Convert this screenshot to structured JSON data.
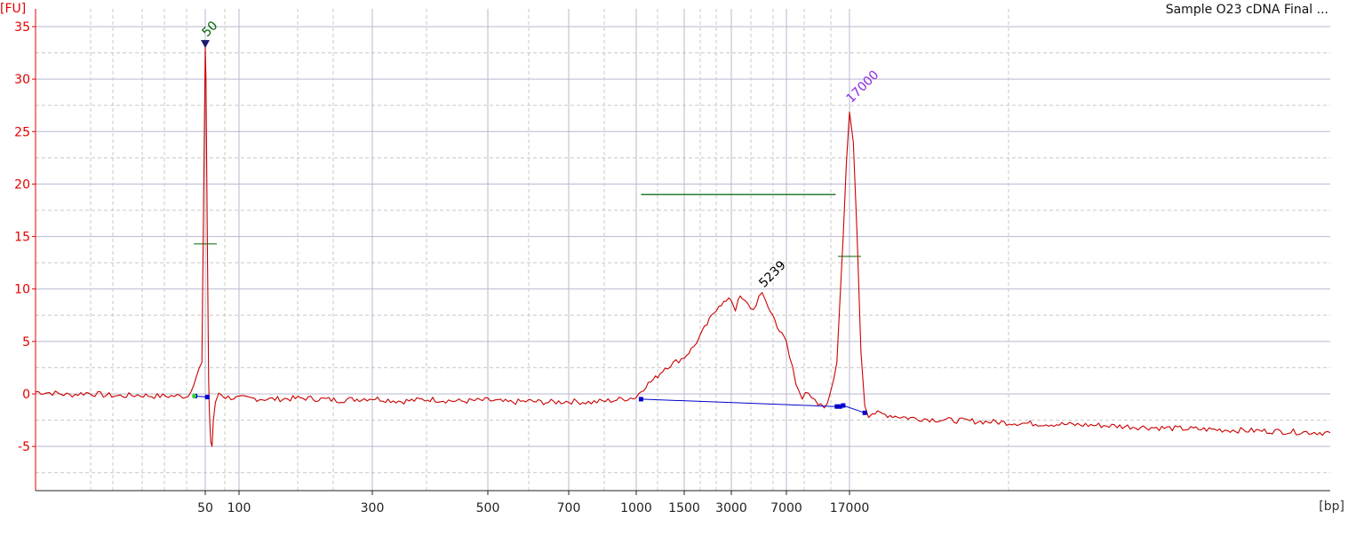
{
  "window": {
    "title": "Sample O23 cDNA Final ..."
  },
  "chart_data": {
    "type": "line",
    "title": "Sample O23 cDNA Final ...",
    "ylabel": "[FU]",
    "xlabel": "[bp]",
    "ylim": [
      -9,
      36
    ],
    "y_ticks": [
      -5,
      0,
      5,
      10,
      15,
      20,
      25,
      30,
      35
    ],
    "x_ticks": [
      "50",
      "100",
      "300",
      "500",
      "700",
      "1000",
      "1500",
      "3000",
      "7000",
      "17000"
    ],
    "grid": true,
    "colors": {
      "trace": "#cc0000",
      "baseline": "#0000cc",
      "smear_bar": "#006400",
      "marker_low": "#006400",
      "marker_high": "#8a2be2",
      "axis_text": "#e00000"
    },
    "series": [
      {
        "x": [
          0,
          5,
          10,
          15,
          20,
          25,
          30,
          35,
          40,
          45,
          49,
          50,
          51,
          53,
          55,
          56,
          58,
          60,
          62,
          65,
          70,
          80,
          100,
          150,
          200,
          250,
          300,
          350,
          400,
          450,
          500,
          550,
          600,
          650,
          700,
          800,
          900,
          1000,
          1050,
          1100,
          1200,
          1300,
          1500,
          1800,
          2000,
          2300,
          2600,
          3000,
          3300,
          3500,
          3800,
          4200,
          4600,
          5000,
          5239,
          5500,
          6000,
          6500,
          7000,
          7500,
          8000,
          8500,
          9000,
          9500,
          10000,
          11000,
          12000,
          13000,
          14000,
          15000,
          16000,
          16500,
          17000,
          17500,
          18000,
          18500,
          19000,
          19500,
          20000,
          22000,
          25000,
          30000,
          40000,
          50000,
          60000,
          70000,
          80000
        ],
        "y": [
          0.2,
          0.1,
          -0.1,
          0.1,
          -0.1,
          -0.2,
          -0.1,
          -0.2,
          -0.2,
          -0.2,
          3.0,
          33.0,
          30.0,
          15.0,
          1.0,
          -1.5,
          -4.5,
          -5.0,
          -2.5,
          -1.0,
          0.1,
          -0.3,
          -0.4,
          -0.5,
          -0.4,
          -0.6,
          -0.4,
          -0.7,
          -0.5,
          -0.7,
          -0.6,
          -0.8,
          -0.7,
          -0.8,
          -0.7,
          -0.8,
          -0.6,
          -0.3,
          0.3,
          0.8,
          1.5,
          2.5,
          3.5,
          4.5,
          5.5,
          7.0,
          8.5,
          9.0,
          8.0,
          9.2,
          9.0,
          8.5,
          8.0,
          9.2,
          9.4,
          8.8,
          7.5,
          6.0,
          5.0,
          3.5,
          2.5,
          1.0,
          0.5,
          -0.3,
          0.2,
          -0.5,
          -1.0,
          -1.3,
          0.0,
          3.0,
          15.0,
          22.0,
          27.0,
          24.0,
          15.0,
          4.0,
          -1.0,
          -2.0,
          -1.8,
          -2.0,
          -2.3,
          -2.5,
          -2.8,
          -3.0,
          -3.3,
          -3.5,
          -3.7
        ]
      }
    ],
    "baseline_segments": [
      {
        "x": [
          47,
          53
        ],
        "y": [
          -0.2,
          -0.3
        ]
      },
      {
        "x": [
          1050,
          15000,
          15500,
          16000,
          19000
        ],
        "y": [
          -0.5,
          -1.2,
          -1.2,
          -1.1,
          -1.8
        ]
      }
    ],
    "peak_labels": [
      {
        "text": "50",
        "x": 50,
        "y": 33.3
      },
      {
        "text": "5239",
        "x": 5239,
        "y": 9.4
      },
      {
        "text": "17000",
        "x": 17000,
        "y": 27.0
      }
    ],
    "smear_region": {
      "x": [
        1050,
        14800
      ],
      "y": 19.0
    },
    "half_height_markers": [
      {
        "x": 50,
        "y": 14.3
      },
      {
        "x": 17000,
        "y": 13.1
      }
    ]
  }
}
